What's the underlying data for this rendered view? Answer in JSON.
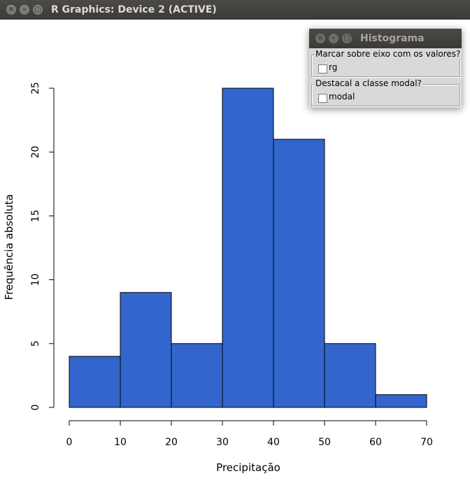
{
  "window": {
    "title": "R Graphics: Device 2 (ACTIVE)",
    "buttons": [
      "close",
      "minimize",
      "maximize"
    ]
  },
  "dialog": {
    "title": "Histograma",
    "group1_label": "Marcar sobre eixo com os valores?",
    "checkbox1_label": "rg",
    "checkbox1_checked": false,
    "group2_label": "Destacal a classe modal?",
    "checkbox2_label": "modal",
    "checkbox2_checked": false
  },
  "chart_data": {
    "type": "bar",
    "title": "",
    "xlabel": "Precipitação",
    "ylabel": "Frequência absoluta",
    "bins": [
      [
        0,
        10
      ],
      [
        10,
        20
      ],
      [
        20,
        30
      ],
      [
        30,
        40
      ],
      [
        40,
        50
      ],
      [
        50,
        60
      ],
      [
        60,
        70
      ]
    ],
    "values": [
      4,
      9,
      5,
      25,
      21,
      5,
      1
    ],
    "xlim": [
      0,
      70
    ],
    "ylim": [
      0,
      25
    ],
    "xticks": [
      0,
      10,
      20,
      30,
      40,
      50,
      60,
      70
    ],
    "yticks": [
      0,
      5,
      10,
      15,
      20,
      25
    ],
    "bar_color": "#3366cc",
    "bar_border_color": "#000000",
    "grid": false
  }
}
